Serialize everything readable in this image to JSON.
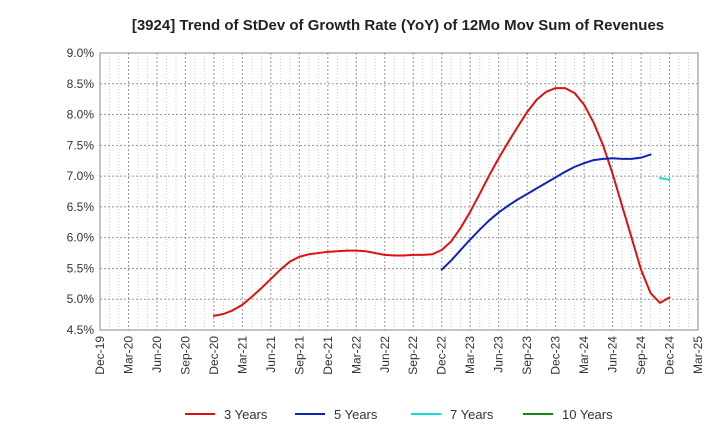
{
  "chart_data": {
    "type": "line",
    "title": "[3924]  Trend of StDev of Growth Rate (YoY) of 12Mo Mov Sum of Revenues",
    "xlabel": "",
    "ylabel": "",
    "ylim": [
      4.5,
      9.0
    ],
    "y_ticks": [
      "4.5%",
      "5.0%",
      "5.5%",
      "6.0%",
      "6.5%",
      "7.0%",
      "7.5%",
      "8.0%",
      "8.5%",
      "9.0%"
    ],
    "x_ticks": [
      "Dec-19",
      "Mar-20",
      "Jun-20",
      "Sep-20",
      "Dec-20",
      "Mar-21",
      "Jun-21",
      "Sep-21",
      "Dec-21",
      "Mar-22",
      "Jun-22",
      "Sep-22",
      "Dec-22",
      "Mar-23",
      "Jun-23",
      "Sep-23",
      "Dec-23",
      "Mar-24",
      "Jun-24",
      "Sep-24",
      "Dec-24",
      "Mar-25"
    ],
    "grid": true,
    "legend_position": "bottom",
    "series": [
      {
        "name": "3 Years",
        "color": "#dd1111",
        "start_month_index": 12,
        "values": [
          4.73,
          4.76,
          4.82,
          4.91,
          5.04,
          5.18,
          5.33,
          5.48,
          5.61,
          5.69,
          5.73,
          5.75,
          5.77,
          5.78,
          5.79,
          5.79,
          5.78,
          5.75,
          5.72,
          5.71,
          5.71,
          5.72,
          5.72,
          5.73,
          5.8,
          5.94,
          6.16,
          6.42,
          6.71,
          7.01,
          7.29,
          7.55,
          7.8,
          8.04,
          8.24,
          8.37,
          8.43,
          8.43,
          8.35,
          8.16,
          7.87,
          7.5,
          7.04,
          6.52,
          6.0,
          5.48,
          5.1,
          4.94,
          5.03
        ]
      },
      {
        "name": "5 Years",
        "color": "#1122bb",
        "start_month_index": 36,
        "values": [
          5.48,
          5.63,
          5.8,
          5.97,
          6.13,
          6.28,
          6.41,
          6.52,
          6.62,
          6.71,
          6.8,
          6.89,
          6.98,
          7.07,
          7.15,
          7.21,
          7.26,
          7.28,
          7.29,
          7.28,
          7.28,
          7.3,
          7.35
        ]
      },
      {
        "name": "7 Years",
        "color": "#11dddd",
        "start_month_index": 59,
        "values": [
          6.97,
          6.94
        ]
      },
      {
        "name": "10 Years",
        "color": "#118811",
        "start_month_index": 0,
        "values": []
      }
    ]
  }
}
